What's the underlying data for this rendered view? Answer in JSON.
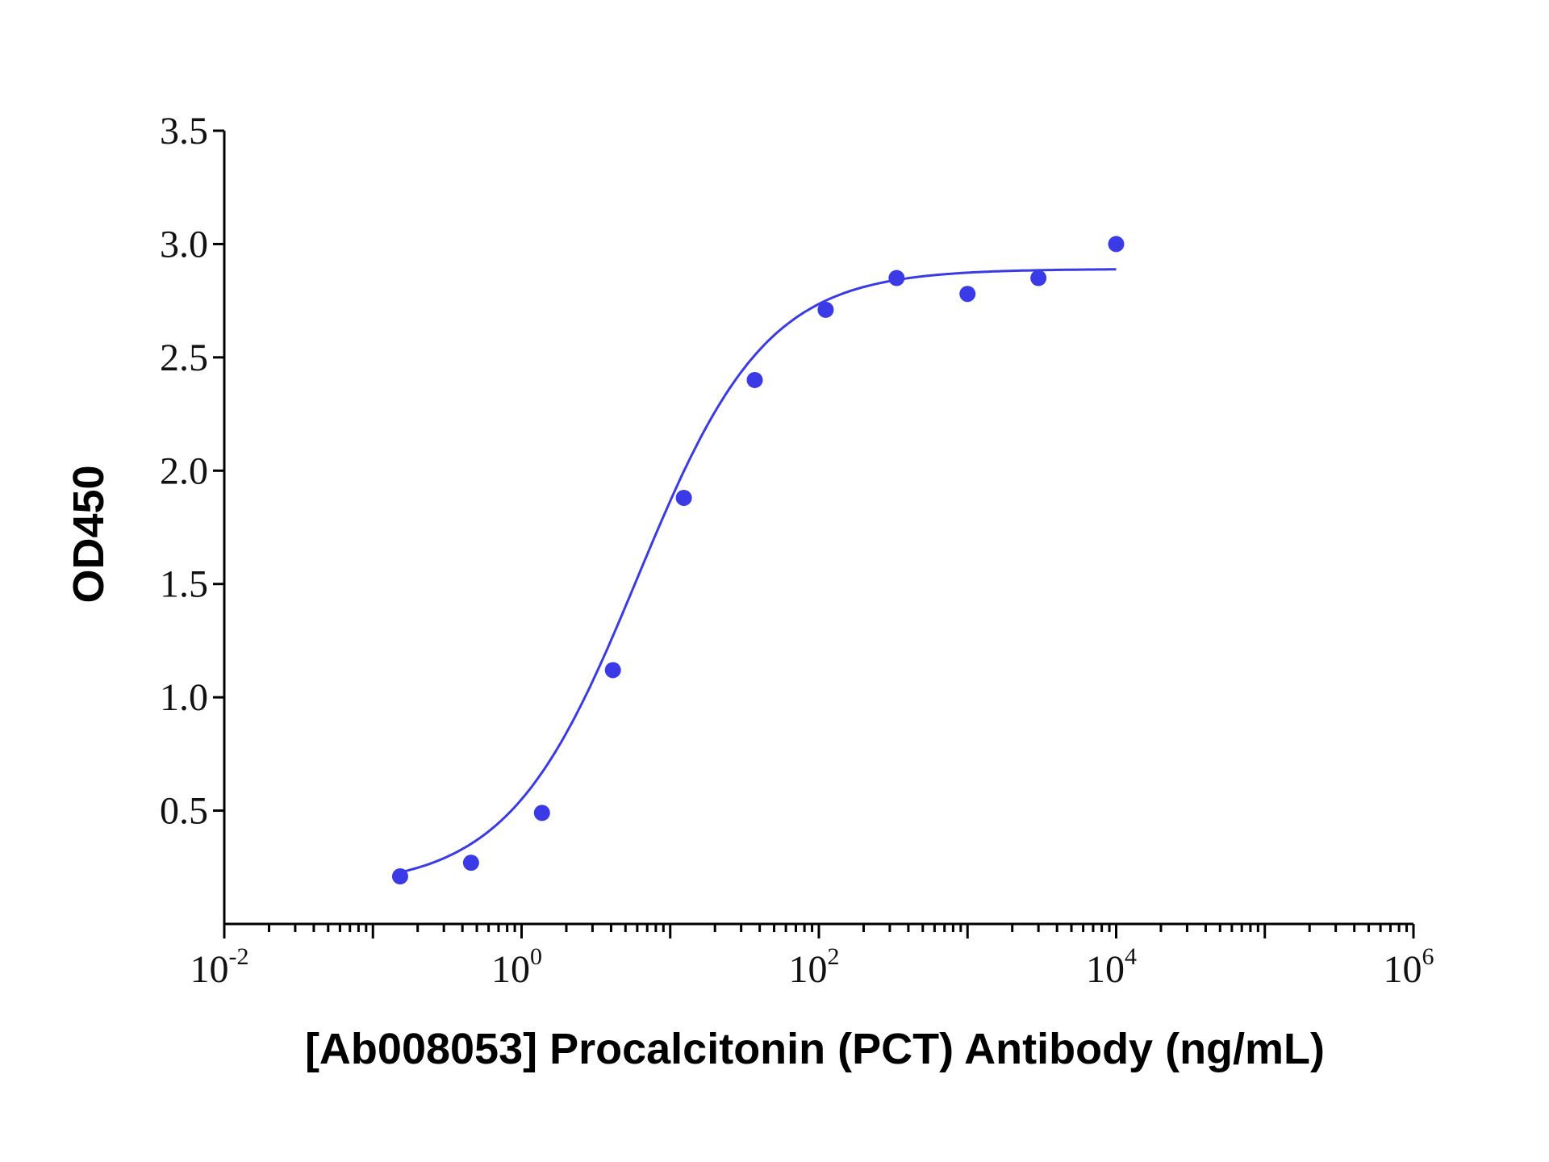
{
  "chart_data": {
    "type": "scatter",
    "xlabel": "[Ab008053] Procalcitonin (PCT) Antibody (ng/mL)",
    "ylabel": "OD450",
    "x_scale": "log",
    "xlim": [
      0.01,
      1000000
    ],
    "ylim": [
      0.0,
      3.5
    ],
    "x_tick_labels": [
      {
        "base": "10",
        "exp": "-2"
      },
      {
        "base": "10",
        "exp": "0"
      },
      {
        "base": "10",
        "exp": "2"
      },
      {
        "base": "10",
        "exp": "4"
      },
      {
        "base": "10",
        "exp": "6"
      }
    ],
    "y_ticks": [
      "0.5",
      "1.0",
      "1.5",
      "2.0",
      "2.5",
      "3.0",
      "3.5"
    ],
    "grid": false,
    "colors": {
      "series": "#3a3ae6"
    },
    "series": [
      {
        "x": [
          0.1524,
          0.4572,
          1.3717,
          4.115,
          12.346,
          37.037,
          111.11,
          333.33,
          1000,
          3000,
          10000
        ],
        "y": [
          0.21,
          0.27,
          0.49,
          1.12,
          1.88,
          2.4,
          2.71,
          2.85,
          2.78,
          2.85,
          3.0
        ]
      }
    ],
    "fit": {
      "type": "4PL",
      "bottom": 0.16,
      "top": 2.89,
      "ec50": 6.0,
      "hill": 1.0
    }
  }
}
